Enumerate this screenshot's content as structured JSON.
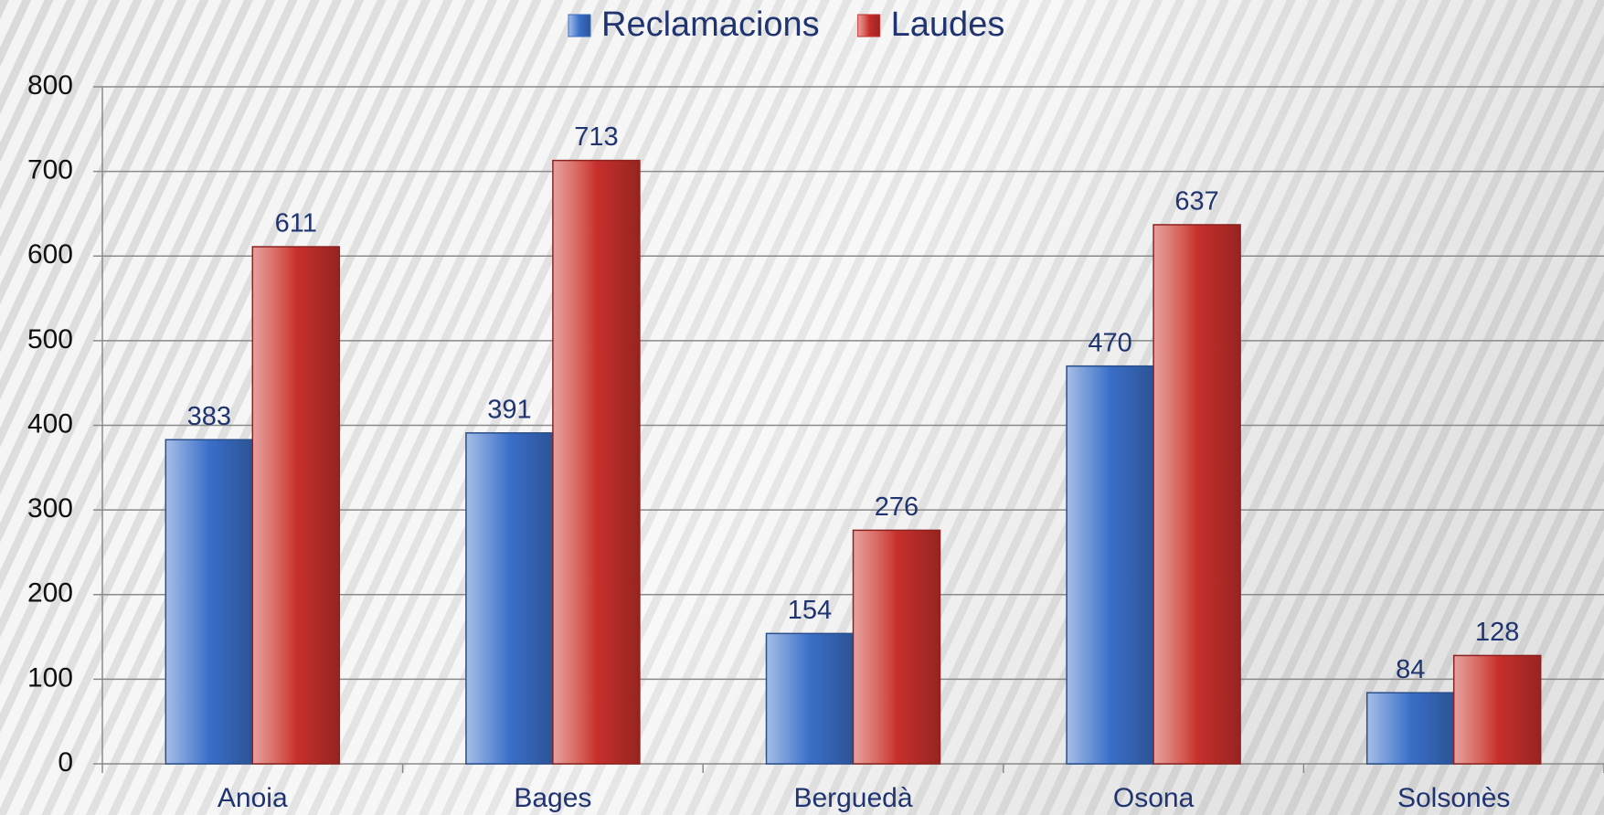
{
  "chart_data": {
    "type": "bar",
    "categories": [
      "Anoia",
      "Bages",
      "Berguedà",
      "Osona",
      "Solsonès"
    ],
    "series": [
      {
        "name": "Reclamacions",
        "color": "#3a6fc8",
        "values": [
          383,
          391,
          154,
          470,
          84
        ]
      },
      {
        "name": "Laudes",
        "color": "#c8302c",
        "values": [
          611,
          713,
          276,
          637,
          128
        ]
      }
    ],
    "ylim": [
      0,
      800
    ],
    "yticks": [
      0,
      100,
      200,
      300,
      400,
      500,
      600,
      700,
      800
    ],
    "grid": true,
    "legend": "top"
  }
}
